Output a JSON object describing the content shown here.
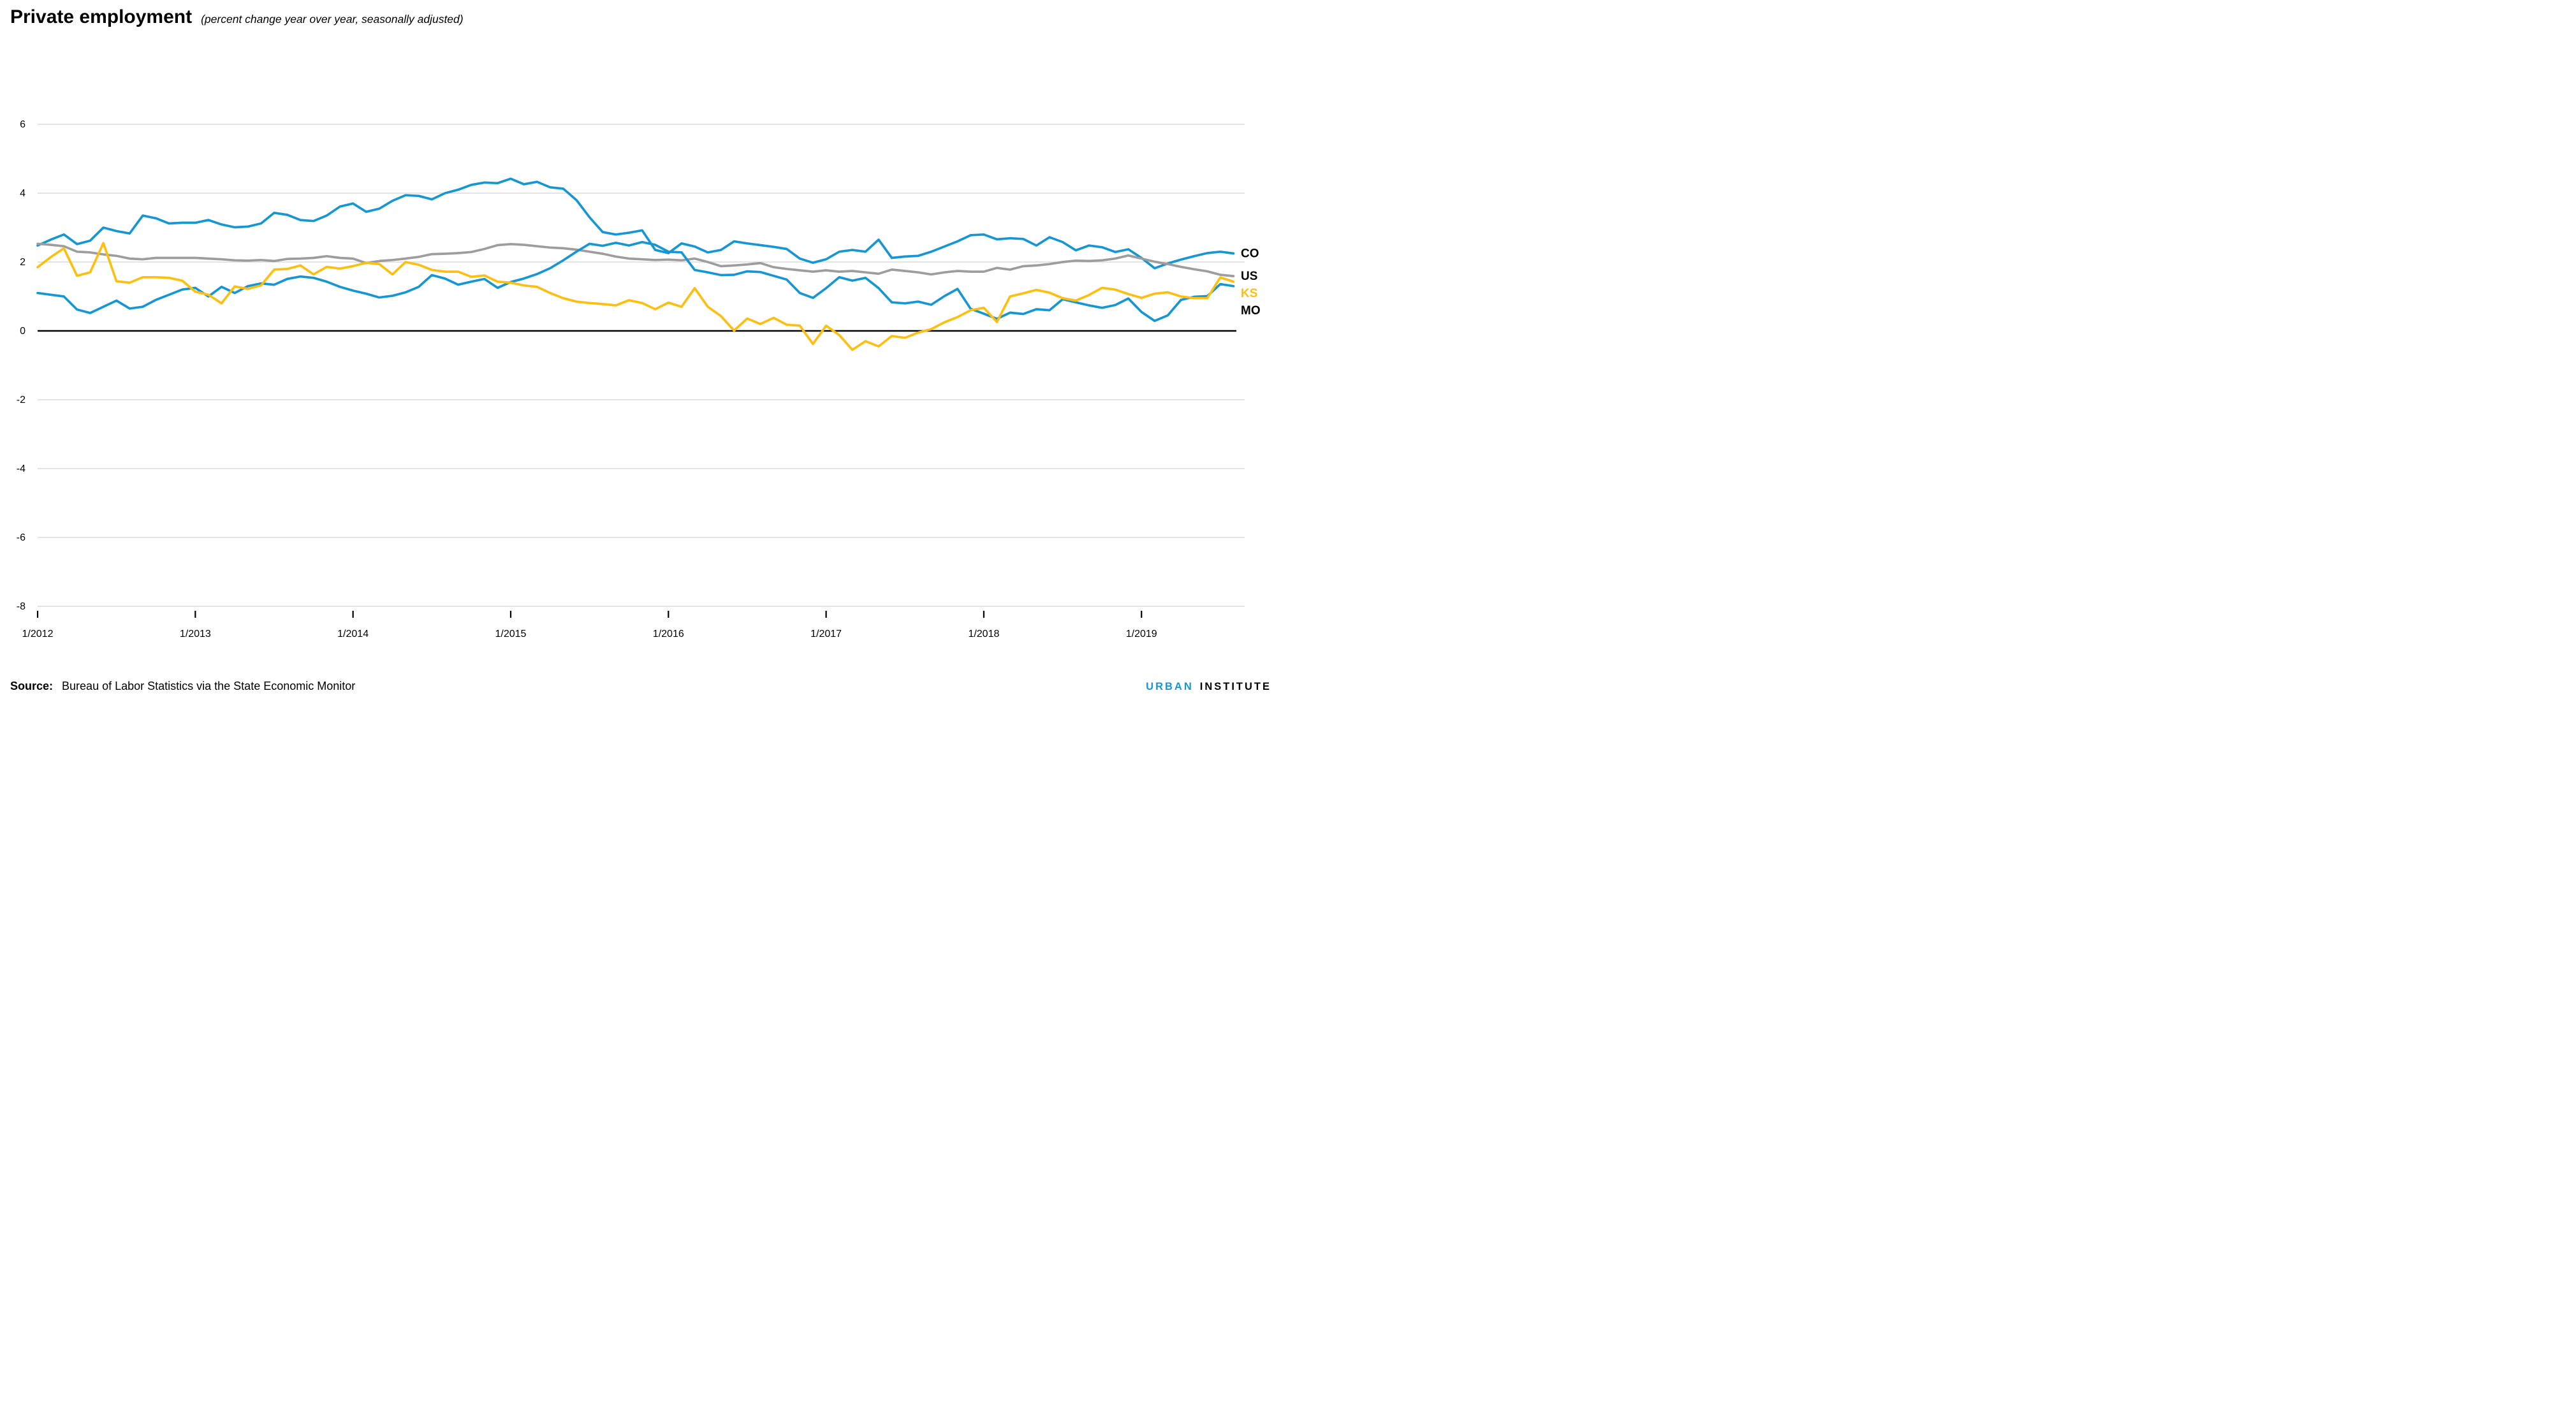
{
  "header": {
    "title": "Private employment",
    "subtitle": "(percent change year over year, seasonally adjusted)"
  },
  "footer": {
    "source_label": "Source:",
    "source_text": "Bureau of Labor Statistics via the State Economic Monitor",
    "brand_urban": "URBAN",
    "brand_institute": "INSTITUTE"
  },
  "colors": {
    "blue": "#1696d2",
    "yellow": "#fdbf11",
    "gray": "#9d9d9d",
    "gridline": "#dcdcdc",
    "zero_line": "#000000",
    "tick": "#000000"
  },
  "chart_data": {
    "type": "line",
    "title": "Private employment",
    "subtitle": "(percent change year over year, seasonally adjusted)",
    "frequency": "monthly",
    "x_start": "1/2012",
    "x_end": "8/2019",
    "xticks": [
      "1/2012",
      "1/2013",
      "1/2014",
      "1/2015",
      "1/2016",
      "1/2017",
      "1/2018",
      "1/2019"
    ],
    "yticks": [
      6,
      4,
      2,
      0,
      -2,
      -4,
      -6,
      -8
    ],
    "ylim": [
      -8,
      6
    ],
    "grid": "horizontal",
    "legend_position": "right-of-line-ends",
    "series": [
      {
        "name": "CO",
        "color": "#1696d2",
        "label_color": "#000000",
        "values": [
          2.48,
          2.65,
          2.8,
          2.52,
          2.62,
          3.0,
          2.9,
          2.83,
          3.35,
          3.27,
          3.12,
          3.14,
          3.14,
          3.22,
          3.09,
          3.01,
          3.03,
          3.12,
          3.43,
          3.37,
          3.22,
          3.19,
          3.35,
          3.61,
          3.7,
          3.46,
          3.55,
          3.78,
          3.94,
          3.92,
          3.82,
          4.0,
          4.1,
          4.24,
          4.31,
          4.29,
          4.42,
          4.26,
          4.33,
          4.17,
          4.13,
          3.8,
          3.3,
          2.87,
          2.8,
          2.85,
          2.92,
          2.35,
          2.26,
          2.54,
          2.45,
          2.28,
          2.35,
          2.6,
          2.54,
          2.49,
          2.44,
          2.38,
          2.1,
          1.98,
          2.08,
          2.3,
          2.35,
          2.3,
          2.65,
          2.12,
          2.16,
          2.18,
          2.3,
          2.45,
          2.6,
          2.78,
          2.8,
          2.66,
          2.69,
          2.67,
          2.48,
          2.72,
          2.58,
          2.34,
          2.48,
          2.43,
          2.29,
          2.37,
          2.12,
          1.82,
          1.96,
          2.07,
          2.17,
          2.26,
          2.3,
          2.25
        ]
      },
      {
        "name": "US",
        "color": "#9d9d9d",
        "label_color": "#000000",
        "values": [
          2.53,
          2.5,
          2.46,
          2.3,
          2.28,
          2.22,
          2.18,
          2.1,
          2.08,
          2.12,
          2.12,
          2.12,
          2.12,
          2.1,
          2.08,
          2.05,
          2.04,
          2.06,
          2.03,
          2.09,
          2.1,
          2.12,
          2.17,
          2.12,
          2.1,
          1.97,
          2.03,
          2.06,
          2.1,
          2.15,
          2.23,
          2.24,
          2.26,
          2.29,
          2.38,
          2.49,
          2.52,
          2.5,
          2.46,
          2.42,
          2.4,
          2.36,
          2.3,
          2.24,
          2.16,
          2.1,
          2.08,
          2.06,
          2.07,
          2.05,
          2.1,
          2.0,
          1.88,
          1.9,
          1.93,
          1.97,
          1.85,
          1.8,
          1.76,
          1.72,
          1.76,
          1.72,
          1.74,
          1.7,
          1.66,
          1.78,
          1.74,
          1.7,
          1.64,
          1.7,
          1.74,
          1.72,
          1.72,
          1.83,
          1.78,
          1.88,
          1.9,
          1.94,
          2.0,
          2.04,
          2.03,
          2.05,
          2.1,
          2.19,
          2.1,
          2.01,
          1.94,
          1.86,
          1.79,
          1.73,
          1.63,
          1.59
        ]
      },
      {
        "name": "KS",
        "color": "#fdbf11",
        "label_color": "#fdbf11",
        "values": [
          1.85,
          2.14,
          2.4,
          1.6,
          1.7,
          2.55,
          1.44,
          1.4,
          1.56,
          1.56,
          1.54,
          1.46,
          1.14,
          1.05,
          0.8,
          1.29,
          1.22,
          1.32,
          1.78,
          1.8,
          1.9,
          1.64,
          1.86,
          1.81,
          1.88,
          1.98,
          1.94,
          1.64,
          2.0,
          1.92,
          1.77,
          1.72,
          1.72,
          1.57,
          1.61,
          1.43,
          1.4,
          1.32,
          1.28,
          1.1,
          0.95,
          0.85,
          0.81,
          0.78,
          0.74,
          0.89,
          0.81,
          0.63,
          0.82,
          0.7,
          1.24,
          0.7,
          0.43,
          0.01,
          0.36,
          0.2,
          0.38,
          0.18,
          0.15,
          -0.38,
          0.15,
          -0.12,
          -0.55,
          -0.3,
          -0.45,
          -0.15,
          -0.2,
          -0.05,
          0.05,
          0.25,
          0.4,
          0.6,
          0.67,
          0.26,
          1.0,
          1.09,
          1.19,
          1.11,
          0.95,
          0.88,
          1.04,
          1.25,
          1.2,
          1.07,
          0.96,
          1.08,
          1.12,
          1.0,
          0.95,
          0.95,
          1.55,
          1.43
        ]
      },
      {
        "name": "MO",
        "color": "#1696d2",
        "label_color": "#000000",
        "values": [
          1.1,
          1.05,
          1.0,
          0.62,
          0.52,
          0.7,
          0.88,
          0.65,
          0.7,
          0.9,
          1.05,
          1.2,
          1.25,
          1.0,
          1.28,
          1.1,
          1.3,
          1.38,
          1.34,
          1.51,
          1.58,
          1.54,
          1.43,
          1.28,
          1.17,
          1.08,
          0.97,
          1.02,
          1.12,
          1.28,
          1.62,
          1.52,
          1.34,
          1.43,
          1.51,
          1.25,
          1.42,
          1.52,
          1.65,
          1.82,
          2.05,
          2.3,
          2.53,
          2.47,
          2.56,
          2.48,
          2.58,
          2.5,
          2.3,
          2.28,
          1.77,
          1.7,
          1.62,
          1.63,
          1.73,
          1.71,
          1.6,
          1.49,
          1.1,
          0.96,
          1.24,
          1.56,
          1.46,
          1.54,
          1.24,
          0.83,
          0.8,
          0.85,
          0.76,
          1.01,
          1.22,
          0.64,
          0.5,
          0.35,
          0.53,
          0.49,
          0.63,
          0.6,
          0.92,
          0.83,
          0.74,
          0.67,
          0.75,
          0.94,
          0.55,
          0.29,
          0.45,
          0.9,
          0.99,
          1.01,
          1.36,
          1.3
        ]
      }
    ]
  }
}
